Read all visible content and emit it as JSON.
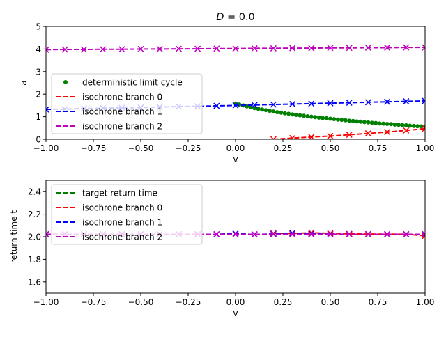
{
  "chart_data": [
    {
      "type": "line",
      "title": "D = 0.0",
      "title_prefix": "D",
      "title_suffix": " = 0.0",
      "xlabel": "v",
      "ylabel": "a",
      "xlim": [
        -1.0,
        1.0
      ],
      "ylim": [
        0,
        5
      ],
      "xticks": [
        -1.0,
        -0.75,
        -0.5,
        -0.25,
        0.0,
        0.25,
        0.5,
        0.75,
        1.0
      ],
      "xtick_labels": [
        "−1.00",
        "−0.75",
        "−0.50",
        "−0.25",
        "0.00",
        "0.25",
        "0.50",
        "0.75",
        "1.00"
      ],
      "yticks": [
        0,
        1,
        2,
        3,
        4,
        5
      ],
      "ytick_labels": [
        "0",
        "1",
        "2",
        "3",
        "4",
        "5"
      ],
      "legend_position": "center-left",
      "series": [
        {
          "name": "deterministic limit cycle",
          "color": "#008000",
          "style": "dots",
          "x": [
            0.0,
            0.02,
            0.04,
            0.06,
            0.08,
            0.1,
            0.12,
            0.14,
            0.16,
            0.18,
            0.2,
            0.22,
            0.24,
            0.26,
            0.28,
            0.3,
            0.32,
            0.34,
            0.36,
            0.38,
            0.4,
            0.42,
            0.44,
            0.46,
            0.48,
            0.5,
            0.52,
            0.54,
            0.56,
            0.58,
            0.6,
            0.62,
            0.64,
            0.66,
            0.68,
            0.7,
            0.72,
            0.74,
            0.76,
            0.78,
            0.8,
            0.82,
            0.84,
            0.86,
            0.88,
            0.9,
            0.92,
            0.94,
            0.96,
            0.98,
            1.0
          ],
          "y": [
            1.58,
            1.54,
            1.5,
            1.46,
            1.42,
            1.38,
            1.35,
            1.32,
            1.29,
            1.26,
            1.23,
            1.2,
            1.18,
            1.15,
            1.13,
            1.1,
            1.08,
            1.06,
            1.04,
            1.02,
            1.0,
            0.98,
            0.96,
            0.94,
            0.93,
            0.91,
            0.89,
            0.87,
            0.86,
            0.84,
            0.82,
            0.81,
            0.79,
            0.78,
            0.76,
            0.75,
            0.73,
            0.72,
            0.7,
            0.69,
            0.68,
            0.67,
            0.65,
            0.64,
            0.63,
            0.62,
            0.6,
            0.59,
            0.58,
            0.57,
            0.56
          ]
        },
        {
          "name": "isochrone branch 0",
          "color": "#ff0000",
          "marker_color": "#ff0000",
          "style": "dashed",
          "x": [
            0.2,
            0.3,
            0.4,
            0.5,
            0.6,
            0.7,
            0.8,
            0.9,
            1.0
          ],
          "y": [
            0.0,
            0.05,
            0.1,
            0.14,
            0.2,
            0.26,
            0.32,
            0.39,
            0.47
          ]
        },
        {
          "name": "isochrone branch 1",
          "color": "#0000ff",
          "marker_color": "#0000ff",
          "style": "dashed",
          "x": [
            -1.0,
            -0.9,
            -0.8,
            -0.7,
            -0.6,
            -0.5,
            -0.4,
            -0.3,
            -0.2,
            -0.1,
            0.0,
            0.1,
            0.2,
            0.3,
            0.4,
            0.5,
            0.6,
            0.7,
            0.8,
            0.9,
            1.0
          ],
          "y": [
            1.32,
            1.34,
            1.36,
            1.38,
            1.39,
            1.41,
            1.43,
            1.45,
            1.46,
            1.48,
            1.5,
            1.52,
            1.54,
            1.56,
            1.58,
            1.6,
            1.62,
            1.64,
            1.66,
            1.68,
            1.7
          ]
        },
        {
          "name": "isochrone branch 2",
          "color": "#bf00bf",
          "marker_color": "#bf00bf",
          "style": "dashed",
          "x": [
            -1.0,
            -0.9,
            -0.8,
            -0.7,
            -0.6,
            -0.5,
            -0.4,
            -0.3,
            -0.2,
            -0.1,
            0.0,
            0.1,
            0.2,
            0.3,
            0.4,
            0.5,
            0.6,
            0.7,
            0.8,
            0.9,
            1.0
          ],
          "y": [
            3.97,
            3.98,
            3.98,
            3.99,
            3.99,
            4.0,
            4.0,
            4.01,
            4.01,
            4.02,
            4.02,
            4.03,
            4.03,
            4.04,
            4.04,
            4.05,
            4.05,
            4.06,
            4.06,
            4.07,
            4.07
          ]
        }
      ]
    },
    {
      "type": "line",
      "title": "",
      "xlabel": "v",
      "ylabel": "return time t",
      "xlim": [
        -1.0,
        1.0
      ],
      "ylim": [
        1.5,
        2.5
      ],
      "xticks": [
        -1.0,
        -0.75,
        -0.5,
        -0.25,
        0.0,
        0.25,
        0.5,
        0.75,
        1.0
      ],
      "xtick_labels": [
        "−1.00",
        "−0.75",
        "−0.50",
        "−0.25",
        "0.00",
        "0.25",
        "0.50",
        "0.75",
        "1.00"
      ],
      "yticks": [
        1.6,
        1.8,
        2.0,
        2.2,
        2.4
      ],
      "ytick_labels": [
        "1.6",
        "1.8",
        "2.0",
        "2.2",
        "2.4"
      ],
      "legend_position": "upper-left",
      "series": [
        {
          "name": "target return time",
          "color": "#008000",
          "style": "dashed",
          "x": [
            -1.0,
            1.0
          ],
          "y": [
            2.022,
            2.022
          ]
        },
        {
          "name": "isochrone branch 0",
          "color": "#ff0000",
          "marker_color": "#ff0000",
          "style": "dashed",
          "x": [
            0.2,
            0.3,
            0.4,
            0.5,
            0.6,
            0.7,
            0.8,
            0.9,
            1.0
          ],
          "y": [
            2.03,
            2.028,
            2.035,
            2.03,
            2.025,
            2.024,
            2.023,
            2.022,
            2.008
          ]
        },
        {
          "name": "isochrone branch 1",
          "color": "#0000ff",
          "marker_color": "#0000ff",
          "style": "dashed",
          "x": [
            -1.0,
            -0.9,
            -0.8,
            -0.7,
            -0.6,
            -0.5,
            -0.4,
            -0.3,
            -0.2,
            -0.1,
            0.0,
            0.1,
            0.2,
            0.3,
            0.4,
            0.5,
            0.6,
            0.7,
            0.8,
            0.9,
            1.0
          ],
          "y": [
            2.022,
            2.022,
            2.022,
            2.022,
            2.022,
            2.022,
            2.022,
            2.022,
            2.022,
            2.022,
            2.028,
            2.02,
            2.025,
            2.032,
            2.026,
            2.023,
            2.022,
            2.022,
            2.022,
            2.022,
            2.022
          ]
        },
        {
          "name": "isochrone branch 2",
          "color": "#bf00bf",
          "marker_color": "#bf00bf",
          "style": "dashed",
          "x": [
            -1.0,
            -0.9,
            -0.8,
            -0.7,
            -0.6,
            -0.5,
            -0.4,
            -0.3,
            -0.2,
            -0.1,
            0.0,
            0.1,
            0.2,
            0.3,
            0.4,
            0.5,
            0.6,
            0.7,
            0.8,
            0.9,
            1.0
          ],
          "y": [
            2.022,
            2.022,
            2.022,
            2.022,
            2.022,
            2.022,
            2.022,
            2.022,
            2.022,
            2.022,
            2.022,
            2.022,
            2.022,
            2.022,
            2.022,
            2.022,
            2.022,
            2.022,
            2.022,
            2.022,
            2.022
          ]
        }
      ]
    }
  ]
}
